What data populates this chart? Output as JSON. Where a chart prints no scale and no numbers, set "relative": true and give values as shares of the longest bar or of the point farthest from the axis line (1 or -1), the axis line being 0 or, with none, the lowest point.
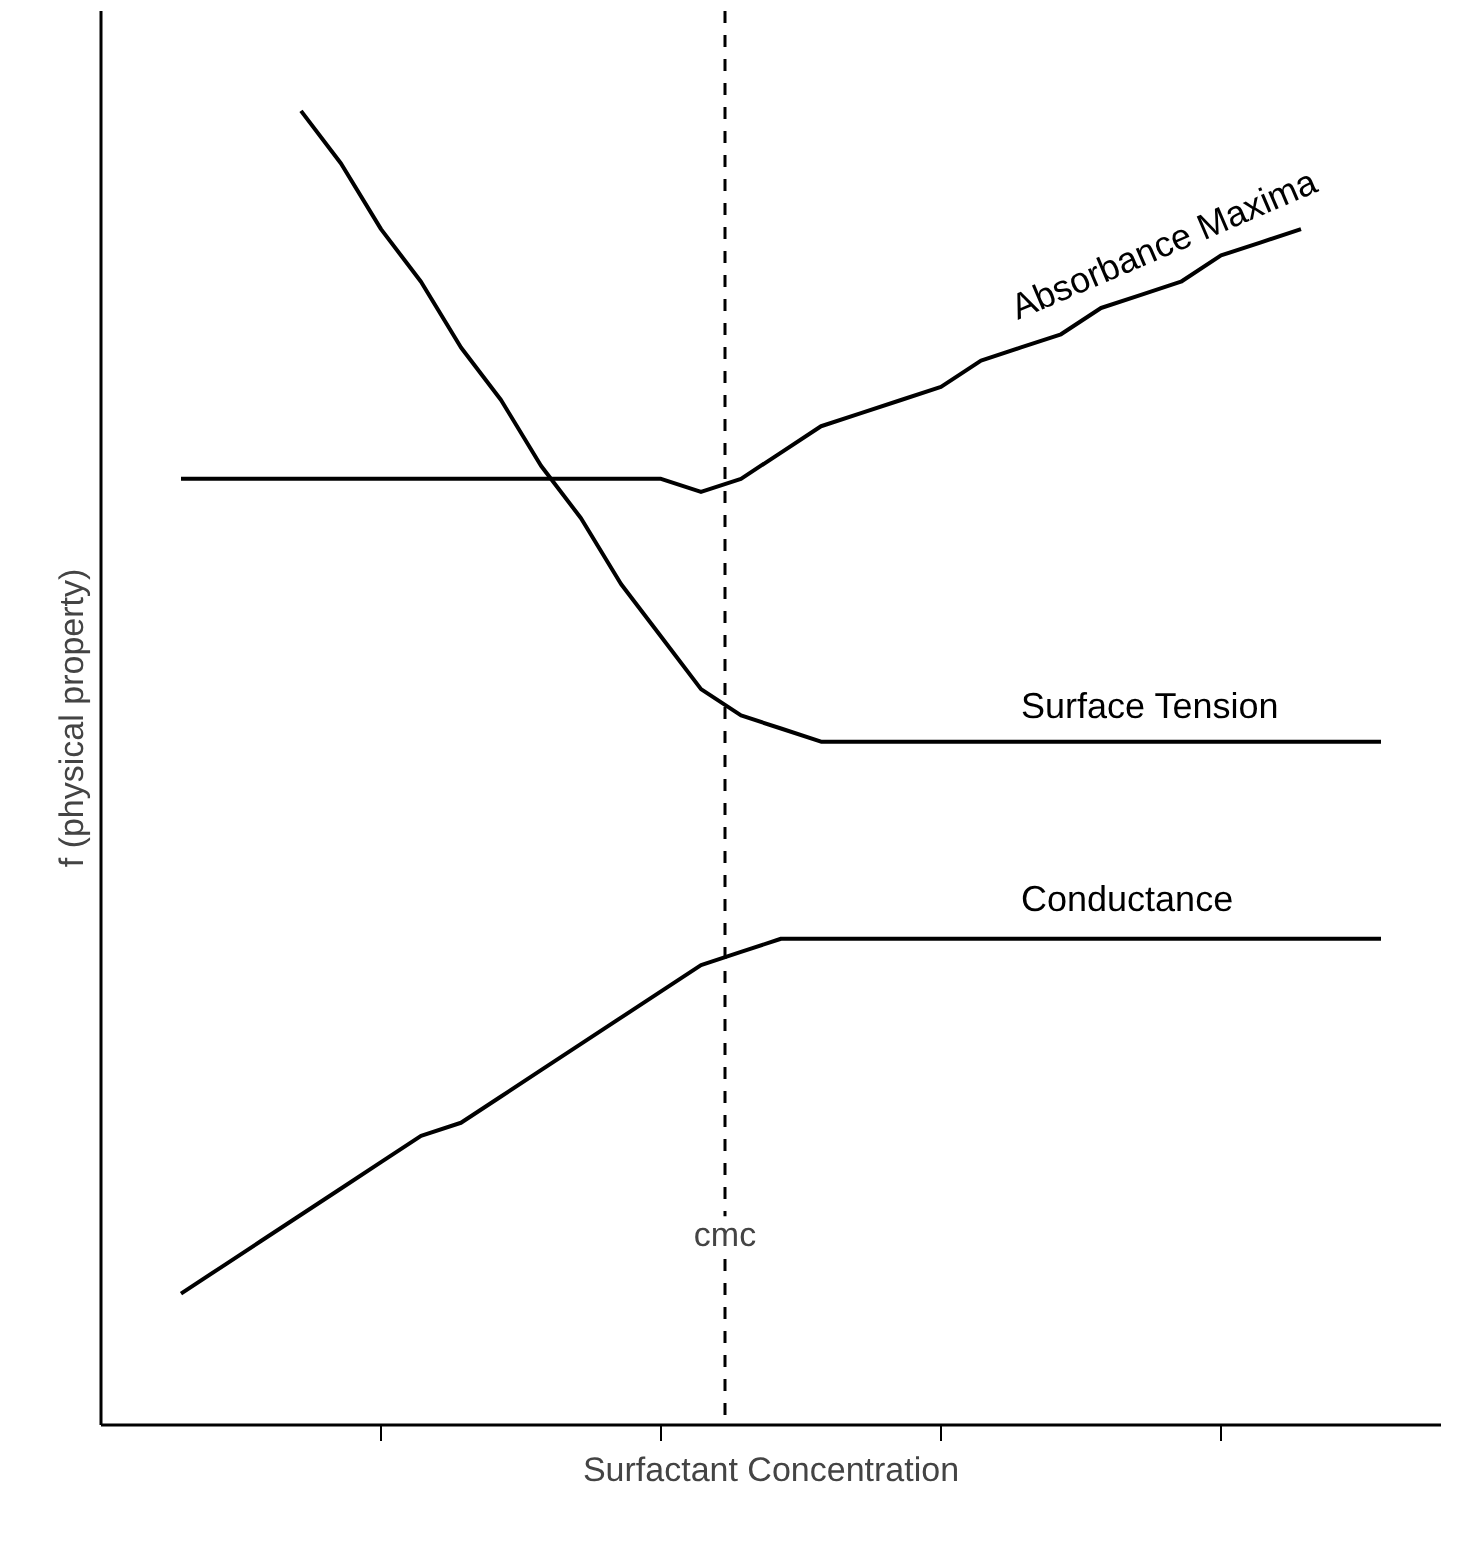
{
  "chart_data": {
    "type": "line",
    "relative": true,
    "xlabel": "Surfactant Concentration",
    "ylabel": "f (physical property)",
    "categories": [
      null,
      null,
      null,
      null,
      null,
      null,
      null,
      null,
      null,
      null,
      null,
      null,
      null,
      null,
      null,
      null,
      null,
      null,
      null,
      null,
      null,
      null,
      null,
      null,
      null,
      null,
      null,
      null,
      null,
      null,
      null
    ],
    "series": [
      {
        "name": "Absorbance Maxima",
        "color": "#000000",
        "values": [
          0.72,
          0.72,
          0.72,
          0.72,
          0.72,
          0.72,
          0.72,
          0.72,
          0.72,
          0.72,
          0.72,
          0.72,
          0.72,
          0.71,
          0.72,
          0.74,
          0.76,
          0.77,
          0.78,
          0.79,
          0.81,
          0.82,
          0.83,
          0.85,
          0.86,
          0.87,
          0.89,
          0.9,
          0.91,
          null,
          null
        ]
      },
      {
        "name": "Surface Tension",
        "color": "#000000",
        "values": [
          null,
          null,
          null,
          1.0,
          0.96,
          0.91,
          0.87,
          0.82,
          0.78,
          0.73,
          0.69,
          0.64,
          0.6,
          0.56,
          0.54,
          0.53,
          0.52,
          0.52,
          0.52,
          0.52,
          0.52,
          0.52,
          0.52,
          0.52,
          0.52,
          0.52,
          0.52,
          0.52,
          0.52,
          0.52,
          0.52
        ]
      },
      {
        "name": "Conductance",
        "color": "#000000",
        "values": [
          0.1,
          0.12,
          0.14,
          0.16,
          0.18,
          0.2,
          0.22,
          0.23,
          0.25,
          0.27,
          0.29,
          0.31,
          0.33,
          0.35,
          0.36,
          0.37,
          0.37,
          0.37,
          0.37,
          0.37,
          0.37,
          0.37,
          0.37,
          0.37,
          0.37,
          0.37,
          0.37,
          0.37,
          0.37,
          0.37,
          0.37
        ]
      }
    ],
    "annotations": [
      "cmc"
    ],
    "legend": false,
    "grid": false,
    "marker": "none",
    "line_style": "solid"
  }
}
